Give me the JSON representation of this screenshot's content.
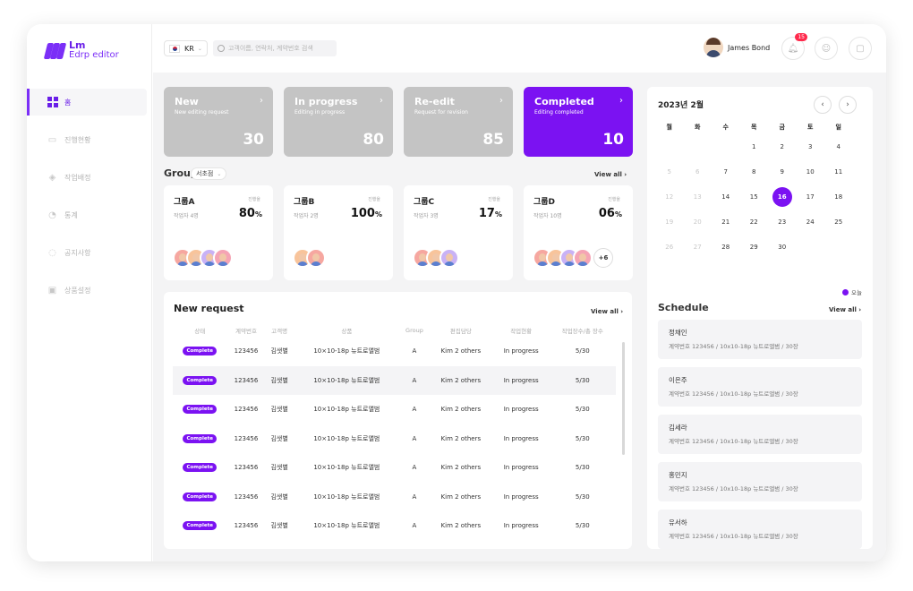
{
  "app": {
    "logo_main": "Lm",
    "logo_sub": "Edrp editor"
  },
  "sidebar": {
    "items": [
      {
        "label": "홈",
        "icon": "home-grid-icon",
        "active": true
      },
      {
        "label": "진행현황",
        "icon": "image-icon"
      },
      {
        "label": "작업배정",
        "icon": "layers-icon"
      },
      {
        "label": "통계",
        "icon": "chart-icon"
      },
      {
        "label": "공지사항",
        "icon": "megaphone-icon"
      },
      {
        "label": "상품설정",
        "icon": "settings-image-icon"
      }
    ]
  },
  "header": {
    "lang": "KR",
    "search_placeholder": "고객이름, 연락처, 계약번호 검색",
    "user_name": "James Bond",
    "notif_count": "15"
  },
  "stats": [
    {
      "title": "New",
      "subtitle": "New editing request",
      "count": "30"
    },
    {
      "title": "In progress",
      "subtitle": "Editing in progress",
      "count": "80"
    },
    {
      "title": "Re-edit",
      "subtitle": "Request for revision",
      "count": "85"
    },
    {
      "title": "Completed",
      "subtitle": "Editing completed",
      "count": "10",
      "active": true
    }
  ],
  "group_section": {
    "title": "Group",
    "filter": "서초점",
    "view_all": "View all"
  },
  "groups": [
    {
      "name": "그룹A",
      "workers": "작업자 4명",
      "progress_label": "진행율",
      "progress": "80",
      "unit": "%"
    },
    {
      "name": "그룹B",
      "workers": "작업자 2명",
      "progress_label": "진행율",
      "progress": "100",
      "unit": "%"
    },
    {
      "name": "그룹C",
      "workers": "작업자 3명",
      "progress_label": "진행율",
      "progress": "17",
      "unit": "%"
    },
    {
      "name": "그룹D",
      "workers": "작업자 10명",
      "progress_label": "진행율",
      "progress": "06",
      "unit": "%",
      "more": "+6"
    }
  ],
  "requests": {
    "title": "New request",
    "view_all": "View all",
    "headers": [
      "상태",
      "계약번호",
      "고객명",
      "상품",
      "Group",
      "편집담당",
      "작업현황",
      "작업장수/총 장수"
    ],
    "rows": [
      [
        "Complete",
        "123456",
        "김샛별",
        "10×10-18p 뉴트로앨범",
        "A",
        "Kim 2 others",
        "In progress",
        "5/30"
      ],
      [
        "Complete",
        "123456",
        "김샛별",
        "10×10-18p 뉴트로앨범",
        "A",
        "Kim 2 others",
        "In progress",
        "5/30"
      ],
      [
        "Complete",
        "123456",
        "김샛별",
        "10×10-18p 뉴트로앨범",
        "A",
        "Kim 2 others",
        "In progress",
        "5/30"
      ],
      [
        "Complete",
        "123456",
        "김샛별",
        "10×10-18p 뉴트로앨범",
        "A",
        "Kim 2 others",
        "In progress",
        "5/30"
      ],
      [
        "Complete",
        "123456",
        "김샛별",
        "10×10-18p 뉴트로앨범",
        "A",
        "Kim 2 others",
        "In progress",
        "5/30"
      ],
      [
        "Complete",
        "123456",
        "김샛별",
        "10×10-18p 뉴트로앨범",
        "A",
        "Kim 2 others",
        "In progress",
        "5/30"
      ],
      [
        "Complete",
        "123456",
        "김샛별",
        "10×10-18p 뉴트로앨범",
        "A",
        "Kim 2 others",
        "In progress",
        "5/30"
      ]
    ]
  },
  "calendar": {
    "title": "2023년 2월",
    "weekdays": [
      "월",
      "화",
      "수",
      "목",
      "금",
      "토",
      "일"
    ],
    "days": [
      [
        "",
        "",
        "",
        "1",
        "2",
        "3",
        "4"
      ],
      [
        "5",
        "6",
        "7",
        "8",
        "9",
        "10",
        "11"
      ],
      [
        "12",
        "13",
        "14",
        "15",
        "16",
        "17",
        "18"
      ],
      [
        "19",
        "20",
        "21",
        "22",
        "23",
        "24",
        "25"
      ],
      [
        "26",
        "27",
        "28",
        "29",
        "30",
        "",
        ""
      ]
    ],
    "today": "16",
    "legend": "오늘"
  },
  "schedule": {
    "title": "Schedule",
    "view_all": "View all",
    "items": [
      {
        "name": "정채인",
        "desc": "계약번호 123456 / 10x10-18p 뉴트로앨범 / 30장"
      },
      {
        "name": "이은주",
        "desc": "계약번호 123456 / 10x10-18p 뉴트로앨범 / 30장"
      },
      {
        "name": "김세라",
        "desc": "계약번호 123456 / 10x10-18p 뉴트로앨범 / 30장"
      },
      {
        "name": "홍민지",
        "desc": "계약번호 123456 / 10x10-18p 뉴트로앨범 / 30장"
      },
      {
        "name": "유서하",
        "desc": "계약번호 123456 / 10x10-18p 뉴트로앨범 / 30장"
      }
    ]
  },
  "colors": {
    "accent": "#7b12f2",
    "stat_inactive": "#c4c4c4",
    "badge": "#ff2a4c"
  }
}
